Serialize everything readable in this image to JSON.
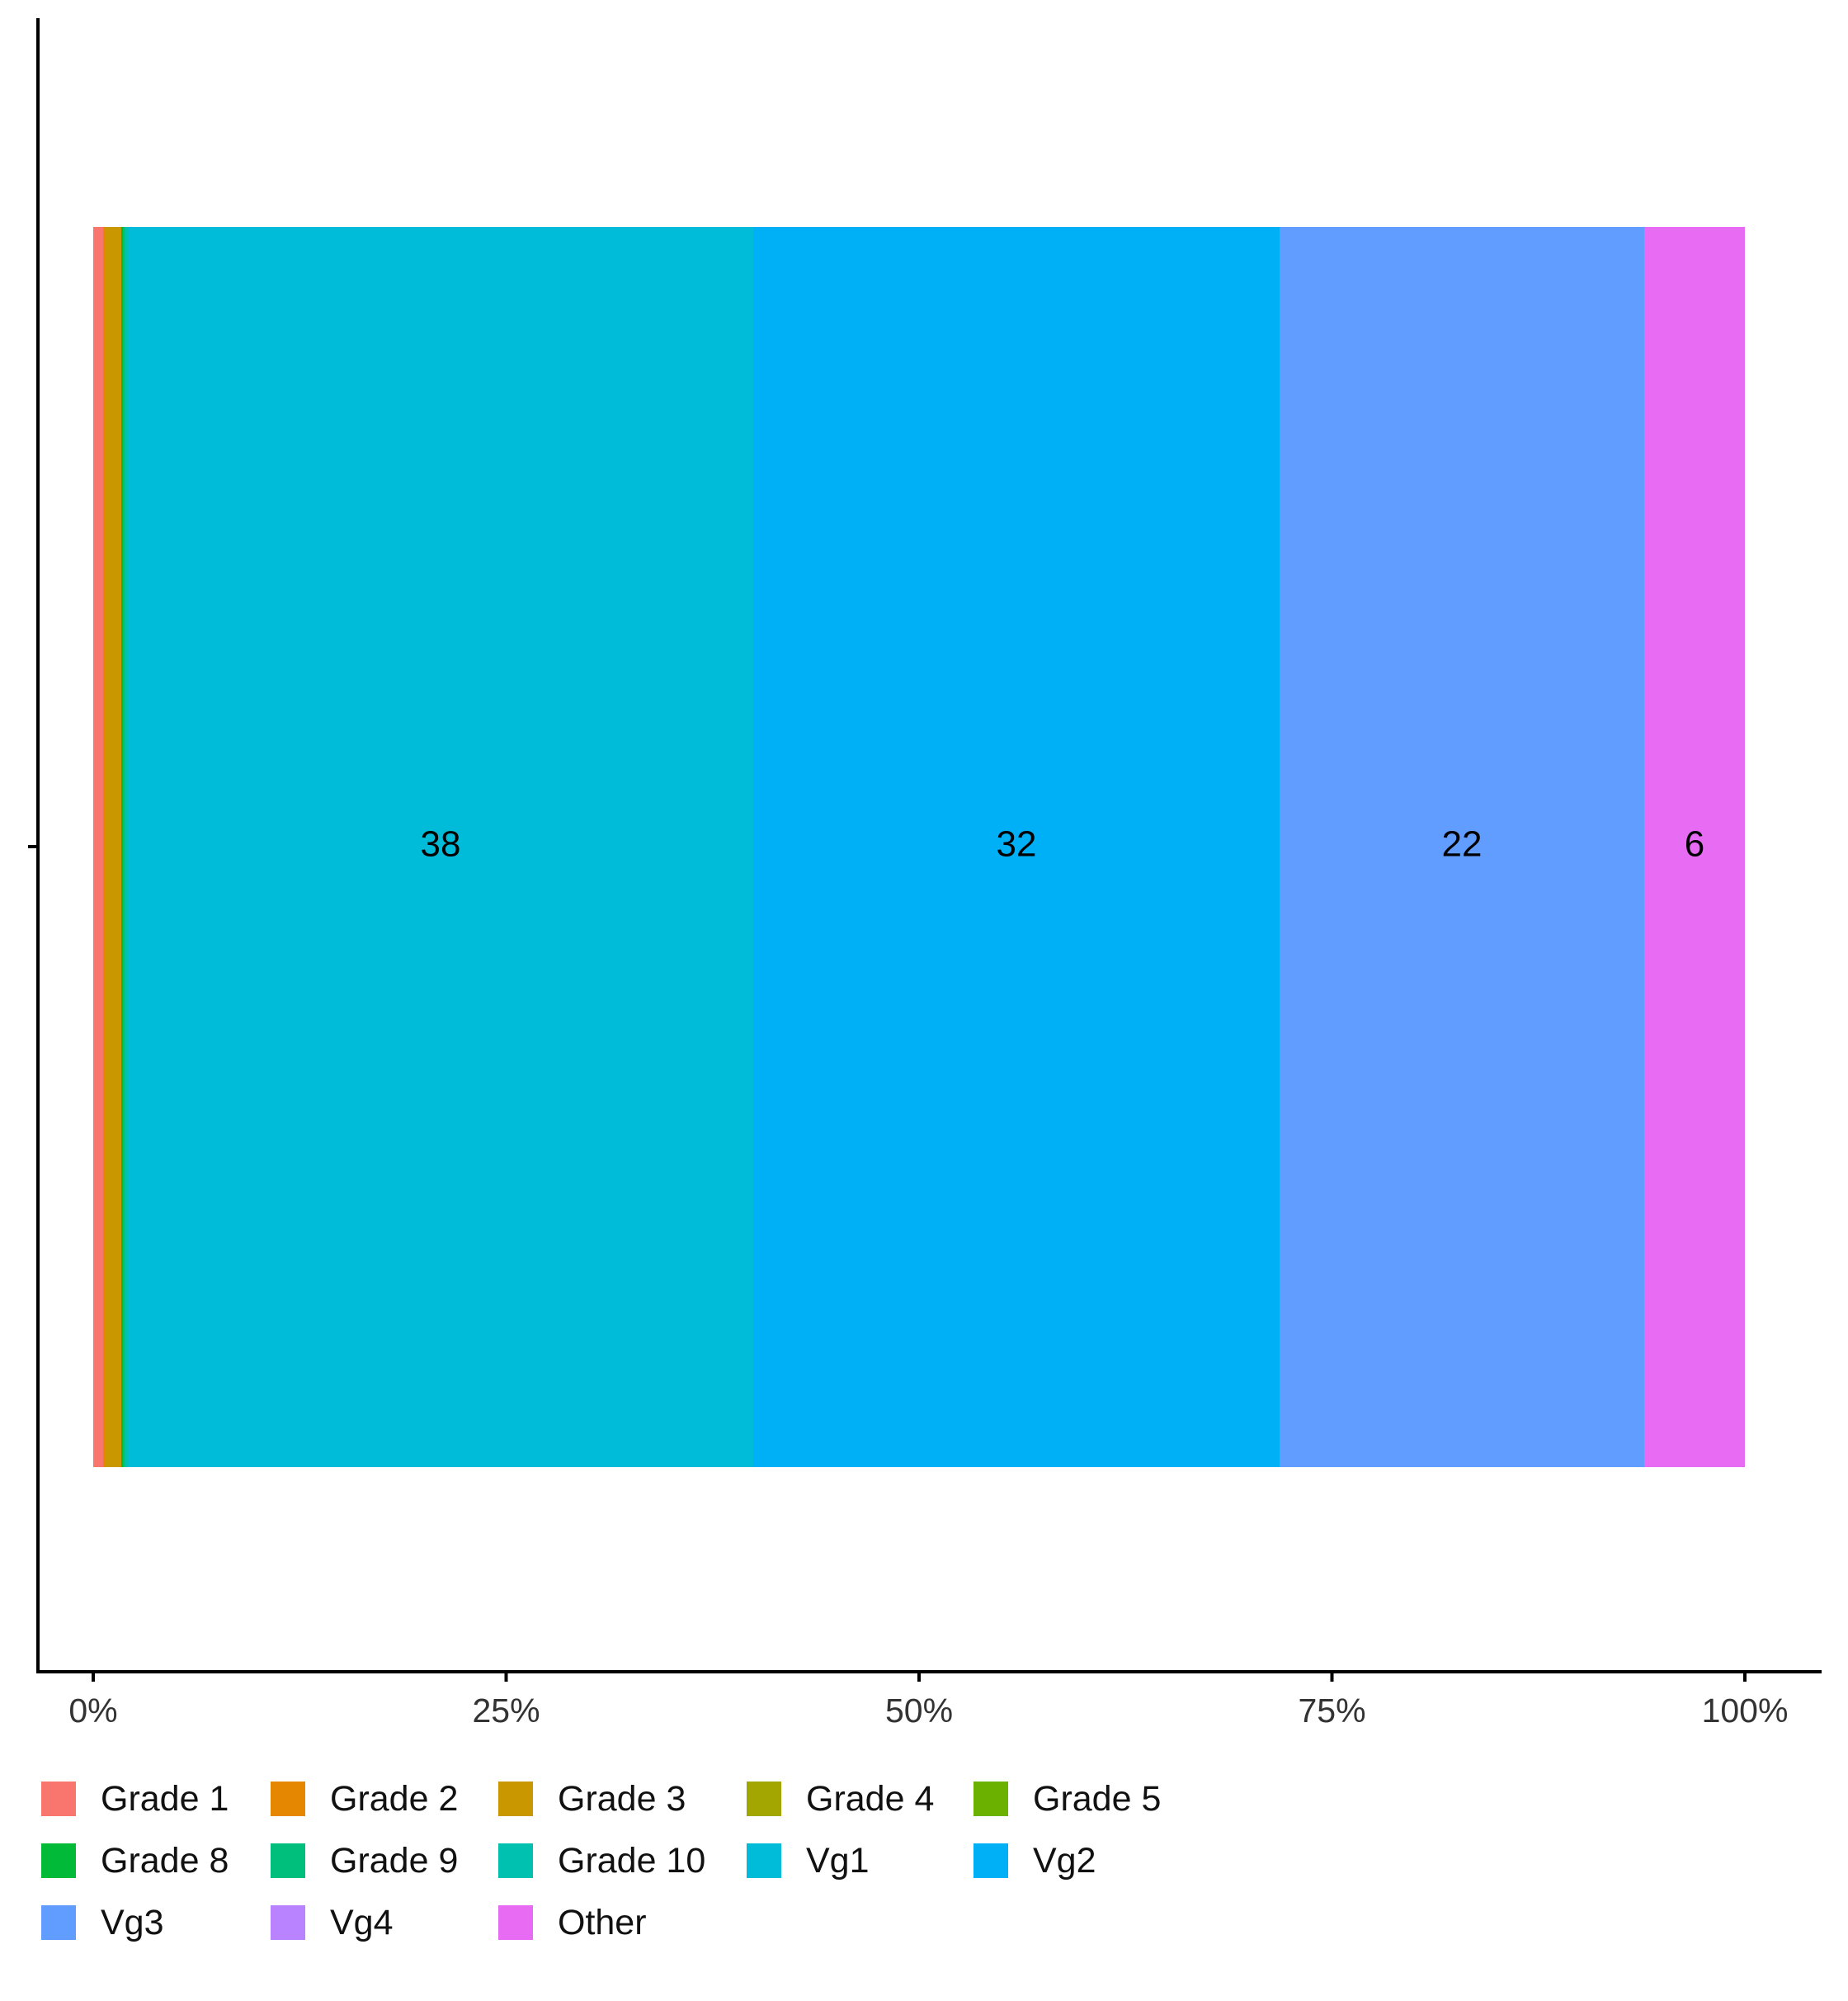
{
  "chart_data": {
    "type": "bar",
    "orientation": "horizontal",
    "stacked": true,
    "normalized_percent": true,
    "x_ticks": [
      "0%",
      "25%",
      "50%",
      "75%",
      "100%"
    ],
    "xlim": [
      0,
      100
    ],
    "grid": false,
    "legend_position": "bottom",
    "series": [
      {
        "name": "Grade 1",
        "value": 0.6,
        "color": "#F8766D",
        "label": ""
      },
      {
        "name": "Grade 2",
        "value": 0.1,
        "color": "#E58700",
        "label": ""
      },
      {
        "name": "Grade 3",
        "value": 1.0,
        "color": "#C99800",
        "label": ""
      },
      {
        "name": "Grade 4",
        "value": 0.0,
        "color": "#A3A500",
        "label": ""
      },
      {
        "name": "Grade 5",
        "value": 0.0,
        "color": "#6BB100",
        "label": ""
      },
      {
        "name": "Grade 8",
        "value": 0.1,
        "color": "#00BA38",
        "label": ""
      },
      {
        "name": "Grade 9",
        "value": 0.1,
        "color": "#00BF7D",
        "label": ""
      },
      {
        "name": "Grade 10",
        "value": 0.2,
        "color": "#00C0AF",
        "label": ""
      },
      {
        "name": "Vg1",
        "value": 37.9,
        "color": "#00BCD8",
        "label": "38"
      },
      {
        "name": "Vg2",
        "value": 31.9,
        "color": "#00B0F6",
        "label": "32"
      },
      {
        "name": "Vg3",
        "value": 22.1,
        "color": "#619CFF",
        "label": "22"
      },
      {
        "name": "Vg4",
        "value": 0.0,
        "color": "#B983FF",
        "label": ""
      },
      {
        "name": "Other",
        "value": 6.1,
        "color": "#E76BF3",
        "label": "6"
      }
    ]
  }
}
